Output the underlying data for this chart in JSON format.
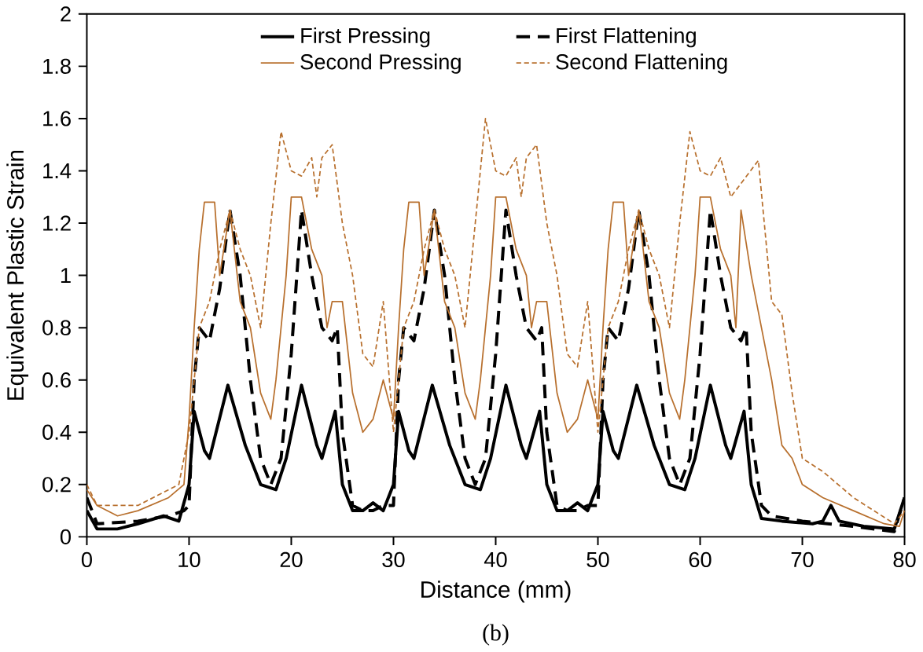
{
  "chart_data": {
    "type": "line",
    "xlabel": "Distance (mm)",
    "ylabel": "Equivalent Plastic Strain",
    "xlim": [
      0,
      80
    ],
    "ylim": [
      0,
      2
    ],
    "xticks": [
      0,
      10,
      20,
      30,
      40,
      50,
      60,
      70,
      80
    ],
    "yticks": [
      0,
      0.2,
      0.4,
      0.6,
      0.8,
      1,
      1.2,
      1.4,
      1.6,
      1.8,
      2
    ],
    "grid": false,
    "legend": "top",
    "marker": "none",
    "annotations": [
      "(b)"
    ],
    "series": [
      {
        "name": "First Pressing",
        "color": "#000000",
        "line_style": "solid",
        "x": [
          0,
          1,
          3,
          5,
          7.5,
          9,
          10,
          10.5,
          11.5,
          12,
          13.8,
          15.5,
          17,
          18.5,
          19.5,
          21,
          22.5,
          23,
          24.3,
          25,
          26,
          27,
          28,
          29,
          30,
          30.5,
          31.5,
          32,
          33.8,
          35.5,
          37,
          38.5,
          39.5,
          41,
          42.5,
          43,
          44.3,
          45,
          46,
          47,
          48,
          49,
          50,
          50.5,
          51.5,
          52,
          53.8,
          55.5,
          57,
          58.5,
          59.5,
          61,
          62.5,
          63,
          64.3,
          65,
          66,
          68,
          71,
          72,
          72.8,
          73.6,
          76,
          79,
          80
        ],
        "values": [
          0.1,
          0.03,
          0.03,
          0.05,
          0.08,
          0.06,
          0.2,
          0.48,
          0.33,
          0.3,
          0.58,
          0.35,
          0.2,
          0.18,
          0.3,
          0.58,
          0.35,
          0.3,
          0.48,
          0.2,
          0.1,
          0.1,
          0.13,
          0.1,
          0.2,
          0.48,
          0.33,
          0.3,
          0.58,
          0.35,
          0.2,
          0.18,
          0.3,
          0.58,
          0.35,
          0.3,
          0.48,
          0.2,
          0.1,
          0.1,
          0.13,
          0.1,
          0.2,
          0.48,
          0.33,
          0.3,
          0.58,
          0.35,
          0.2,
          0.18,
          0.3,
          0.58,
          0.35,
          0.3,
          0.48,
          0.2,
          0.07,
          0.06,
          0.05,
          0.06,
          0.12,
          0.06,
          0.04,
          0.03,
          0.15
        ]
      },
      {
        "name": "First Flattening",
        "color": "#000000",
        "line_style": "dashed",
        "x": [
          0,
          1,
          5,
          8,
          9.5,
          10,
          10.5,
          11,
          12,
          13,
          14,
          15,
          16,
          17,
          18,
          19,
          20,
          21,
          22,
          23,
          24,
          24.5,
          25,
          26,
          27,
          28,
          29,
          30,
          30.5,
          31,
          32,
          33,
          34,
          35,
          36,
          37,
          38,
          39,
          40,
          41,
          42,
          43,
          44,
          44.5,
          45,
          46,
          47,
          48,
          49,
          50,
          50.5,
          51,
          52,
          53,
          54,
          55,
          56,
          57,
          58,
          59,
          60,
          61,
          62,
          63,
          64,
          64.5,
          65,
          66,
          67,
          70,
          75,
          79,
          80
        ],
        "values": [
          0.15,
          0.05,
          0.06,
          0.08,
          0.1,
          0.12,
          0.6,
          0.8,
          0.75,
          0.95,
          1.25,
          1.0,
          0.6,
          0.3,
          0.2,
          0.3,
          0.7,
          1.25,
          1.0,
          0.8,
          0.75,
          0.8,
          0.4,
          0.12,
          0.1,
          0.1,
          0.12,
          0.12,
          0.6,
          0.8,
          0.75,
          0.95,
          1.25,
          1.0,
          0.6,
          0.3,
          0.2,
          0.3,
          0.7,
          1.25,
          1.0,
          0.8,
          0.75,
          0.8,
          0.4,
          0.12,
          0.1,
          0.1,
          0.12,
          0.12,
          0.6,
          0.8,
          0.75,
          0.95,
          1.25,
          1.0,
          0.6,
          0.3,
          0.2,
          0.3,
          0.7,
          1.25,
          1.0,
          0.8,
          0.75,
          0.8,
          0.4,
          0.12,
          0.08,
          0.06,
          0.04,
          0.02,
          0.15
        ]
      },
      {
        "name": "Second Pressing",
        "color": "#b8702e",
        "line_style": "solid",
        "x": [
          0,
          1,
          3,
          5,
          8,
          9.5,
          10,
          10.5,
          11,
          11.5,
          12.5,
          13,
          14,
          15,
          16,
          17,
          18,
          18.5,
          19.5,
          20,
          21,
          22,
          23,
          23.5,
          24,
          25,
          26,
          27,
          28,
          29,
          30,
          30.5,
          31,
          31.5,
          32.5,
          33,
          34,
          35,
          36,
          37,
          38,
          38.5,
          39.5,
          40,
          41,
          42,
          43,
          43.5,
          44,
          45,
          46,
          47,
          48,
          49,
          50,
          50.5,
          51,
          51.5,
          52.5,
          53,
          54,
          55,
          56,
          57,
          58,
          58.5,
          59.5,
          60,
          61,
          62,
          63,
          63.5,
          64,
          65,
          66,
          67,
          68,
          69,
          70,
          72,
          75,
          78,
          79.5,
          80
        ],
        "values": [
          0.18,
          0.12,
          0.08,
          0.1,
          0.15,
          0.2,
          0.45,
          0.8,
          1.1,
          1.28,
          1.28,
          1.0,
          1.25,
          0.9,
          0.8,
          0.55,
          0.45,
          0.6,
          1.0,
          1.3,
          1.3,
          1.1,
          1.0,
          0.8,
          0.9,
          0.9,
          0.55,
          0.4,
          0.45,
          0.6,
          0.45,
          0.8,
          1.1,
          1.28,
          1.28,
          1.0,
          1.25,
          0.9,
          0.8,
          0.55,
          0.45,
          0.6,
          1.0,
          1.3,
          1.3,
          1.1,
          1.0,
          0.8,
          0.9,
          0.9,
          0.55,
          0.4,
          0.45,
          0.6,
          0.45,
          0.8,
          1.1,
          1.28,
          1.28,
          1.0,
          1.25,
          0.9,
          0.8,
          0.55,
          0.45,
          0.6,
          1.0,
          1.3,
          1.3,
          1.1,
          1.0,
          0.8,
          1.25,
          1.0,
          0.8,
          0.6,
          0.35,
          0.3,
          0.2,
          0.15,
          0.1,
          0.05,
          0.04,
          0.1
        ]
      },
      {
        "name": "Second Flattening",
        "color": "#b8702e",
        "line_style": "dashed",
        "x": [
          0,
          1,
          5,
          9,
          10,
          11,
          12,
          13,
          14,
          15,
          16,
          17,
          18,
          19,
          20,
          21,
          22,
          22.5,
          23,
          24,
          25,
          26,
          27,
          28,
          29,
          30,
          31,
          32,
          33,
          34,
          35,
          36,
          37,
          38,
          39,
          40,
          41,
          42,
          42.5,
          43,
          44,
          45,
          46,
          47,
          48,
          49,
          50,
          51,
          52,
          53,
          54,
          55,
          56,
          57,
          58,
          59,
          60,
          61,
          62,
          63,
          65.7,
          67,
          68,
          69,
          70,
          72,
          75,
          79,
          80
        ],
        "values": [
          0.2,
          0.12,
          0.12,
          0.2,
          0.4,
          0.8,
          0.9,
          1.1,
          1.25,
          1.1,
          1.0,
          0.8,
          1.2,
          1.55,
          1.4,
          1.38,
          1.45,
          1.3,
          1.45,
          1.5,
          1.2,
          1.0,
          0.7,
          0.65,
          0.9,
          0.4,
          0.8,
          0.9,
          1.1,
          1.25,
          1.1,
          1.0,
          0.8,
          1.2,
          1.6,
          1.4,
          1.38,
          1.45,
          1.3,
          1.45,
          1.5,
          1.2,
          1.0,
          0.7,
          0.65,
          0.9,
          0.4,
          0.8,
          0.9,
          1.1,
          1.25,
          1.1,
          1.0,
          0.8,
          1.2,
          1.55,
          1.4,
          1.38,
          1.45,
          1.3,
          1.44,
          0.9,
          0.85,
          0.55,
          0.3,
          0.25,
          0.15,
          0.05,
          0.1
        ]
      }
    ]
  }
}
